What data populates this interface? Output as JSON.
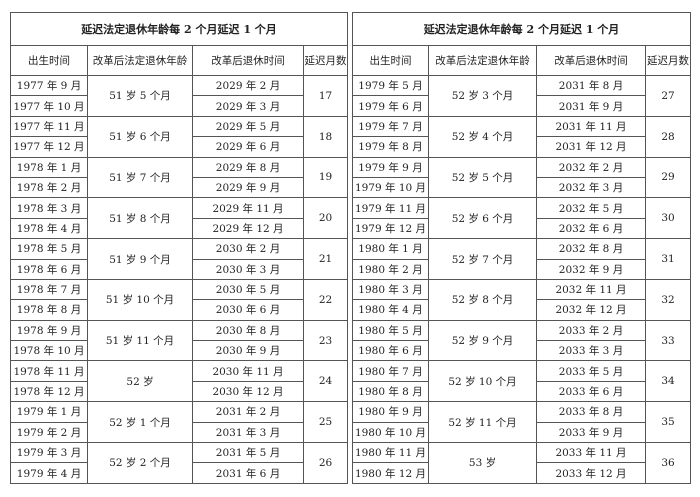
{
  "tables": [
    {
      "title": "延迟法定退休年龄每 2 个月延迟 1 个月",
      "headers": [
        "出生时间",
        "改革后法定退休年龄",
        "改革后退休时间",
        "延迟月数"
      ],
      "groups": [
        {
          "age": "51 岁 5 个月",
          "delay": 17,
          "rows": [
            {
              "birth": "1977 年 9 月",
              "retire": "2029 年 2 月"
            },
            {
              "birth": "1977 年 10 月",
              "retire": "2029 年 3 月"
            }
          ]
        },
        {
          "age": "51 岁 6 个月",
          "delay": 18,
          "rows": [
            {
              "birth": "1977 年 11 月",
              "retire": "2029 年 5 月"
            },
            {
              "birth": "1977 年 12 月",
              "retire": "2029 年 6 月"
            }
          ]
        },
        {
          "age": "51 岁 7 个月",
          "delay": 19,
          "rows": [
            {
              "birth": "1978 年 1 月",
              "retire": "2029 年 8 月"
            },
            {
              "birth": "1978 年 2 月",
              "retire": "2029 年 9 月"
            }
          ]
        },
        {
          "age": "51 岁 8 个月",
          "delay": 20,
          "rows": [
            {
              "birth": "1978 年 3 月",
              "retire": "2029 年 11 月"
            },
            {
              "birth": "1978 年 4 月",
              "retire": "2029 年 12 月"
            }
          ]
        },
        {
          "age": "51 岁 9 个月",
          "delay": 21,
          "rows": [
            {
              "birth": "1978 年 5 月",
              "retire": "2030 年 2 月"
            },
            {
              "birth": "1978 年 6 月",
              "retire": "2030 年 3 月"
            }
          ]
        },
        {
          "age": "51 岁 10 个月",
          "delay": 22,
          "rows": [
            {
              "birth": "1978 年 7 月",
              "retire": "2030 年 5 月"
            },
            {
              "birth": "1978 年 8 月",
              "retire": "2030 年 6 月"
            }
          ]
        },
        {
          "age": "51 岁 11 个月",
          "delay": 23,
          "rows": [
            {
              "birth": "1978 年 9 月",
              "retire": "2030 年 8 月"
            },
            {
              "birth": "1978 年 10 月",
              "retire": "2030 年 9 月"
            }
          ]
        },
        {
          "age": "52 岁",
          "delay": 24,
          "rows": [
            {
              "birth": "1978 年 11 月",
              "retire": "2030 年 11 月"
            },
            {
              "birth": "1978 年 12 月",
              "retire": "2030 年 12 月"
            }
          ]
        },
        {
          "age": "52 岁 1 个月",
          "delay": 25,
          "rows": [
            {
              "birth": "1979 年 1 月",
              "retire": "2031 年 2 月"
            },
            {
              "birth": "1979 年 2 月",
              "retire": "2031 年 3 月"
            }
          ]
        },
        {
          "age": "52 岁 2 个月",
          "delay": 26,
          "rows": [
            {
              "birth": "1979 年 3 月",
              "retire": "2031 年 5 月"
            },
            {
              "birth": "1979 年 4 月",
              "retire": "2031 年 6 月"
            }
          ]
        }
      ]
    },
    {
      "title": "延迟法定退休年龄每 2 个月延迟 1 个月",
      "headers": [
        "出生时间",
        "改革后法定退休年龄",
        "改革后退休时间",
        "延迟月数"
      ],
      "groups": [
        {
          "age": "52 岁 3 个月",
          "delay": 27,
          "rows": [
            {
              "birth": "1979 年 5 月",
              "retire": "2031 年 8 月"
            },
            {
              "birth": "1979 年 6 月",
              "retire": "2031 年 9 月"
            }
          ]
        },
        {
          "age": "52 岁 4 个月",
          "delay": 28,
          "rows": [
            {
              "birth": "1979 年 7 月",
              "retire": "2031 年 11 月"
            },
            {
              "birth": "1979 年 8 月",
              "retire": "2031 年 12 月"
            }
          ]
        },
        {
          "age": "52 岁 5 个月",
          "delay": 29,
          "rows": [
            {
              "birth": "1979 年 9 月",
              "retire": "2032 年 2 月"
            },
            {
              "birth": "1979 年 10 月",
              "retire": "2032 年 3 月"
            }
          ]
        },
        {
          "age": "52 岁 6 个月",
          "delay": 30,
          "rows": [
            {
              "birth": "1979 年 11 月",
              "retire": "2032 年 5 月"
            },
            {
              "birth": "1979 年 12 月",
              "retire": "2032 年 6 月"
            }
          ]
        },
        {
          "age": "52 岁 7 个月",
          "delay": 31,
          "rows": [
            {
              "birth": "1980 年 1 月",
              "retire": "2032 年 8 月"
            },
            {
              "birth": "1980 年 2 月",
              "retire": "2032 年 9 月"
            }
          ]
        },
        {
          "age": "52 岁 8 个月",
          "delay": 32,
          "rows": [
            {
              "birth": "1980 年 3 月",
              "retire": "2032 年 11 月"
            },
            {
              "birth": "1980 年 4 月",
              "retire": "2032 年 12 月"
            }
          ]
        },
        {
          "age": "52 岁 9 个月",
          "delay": 33,
          "rows": [
            {
              "birth": "1980 年 5 月",
              "retire": "2033 年 2 月"
            },
            {
              "birth": "1980 年 6 月",
              "retire": "2033 年 3 月"
            }
          ]
        },
        {
          "age": "52 岁 10 个月",
          "delay": 34,
          "rows": [
            {
              "birth": "1980 年 7 月",
              "retire": "2033 年 5 月"
            },
            {
              "birth": "1980 年 8 月",
              "retire": "2033 年 6 月"
            }
          ]
        },
        {
          "age": "52 岁 11 个月",
          "delay": 35,
          "rows": [
            {
              "birth": "1980 年 9 月",
              "retire": "2033 年 8 月"
            },
            {
              "birth": "1980 年 10 月",
              "retire": "2033 年 9 月"
            }
          ]
        },
        {
          "age": "53 岁",
          "delay": 36,
          "rows": [
            {
              "birth": "1980 年 11 月",
              "retire": "2033 年 11 月"
            },
            {
              "birth": "1980 年 12 月",
              "retire": "2033 年 12 月"
            }
          ]
        }
      ]
    }
  ]
}
